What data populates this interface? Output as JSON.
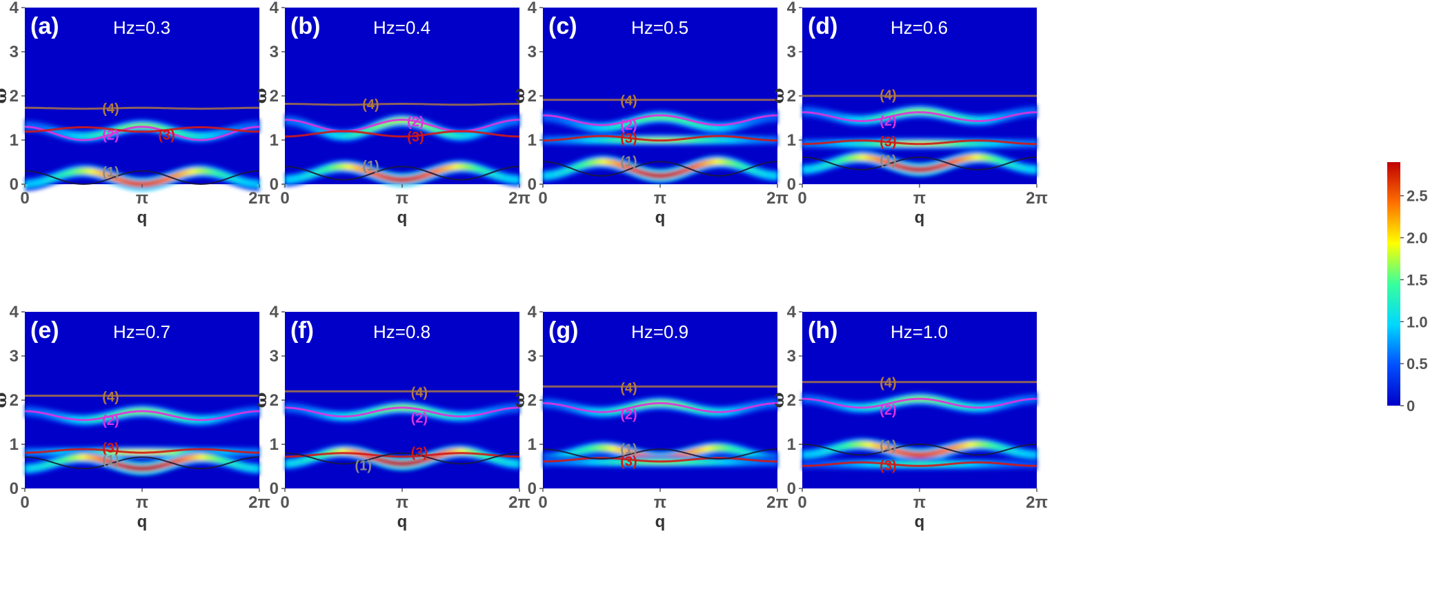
{
  "chart_data": {
    "type": "spectral-heatmap",
    "xlabel": "q",
    "ylabel": "ω",
    "x_ticks": [
      "0",
      "π",
      "2π"
    ],
    "xlim": [
      0,
      6.2832
    ],
    "ylim": [
      0,
      4
    ],
    "y_ticks": [
      "0",
      "1",
      "2",
      "3",
      "4"
    ],
    "colorbar": {
      "ticks": [
        "0",
        "0.5",
        "1.0",
        "1.5",
        "2.0",
        "2.5"
      ],
      "range": [
        0,
        2.9
      ],
      "colors": [
        "#0000c8",
        "#0050ff",
        "#00d8ff",
        "#38ff9c",
        "#ffff00",
        "#ff7000",
        "#c00000"
      ]
    },
    "band_colors": {
      "1": "#8a8a8a",
      "2": "#e030e0",
      "3": "#d01818",
      "4": "#b07a40"
    },
    "panels": [
      {
        "label": "(a)",
        "title": "Hz=0.3",
        "branch_labels": [
          {
            "text": "(4)",
            "band": "4",
            "q": 2.3,
            "w": 1.72
          },
          {
            "text": "(2)",
            "band": "2",
            "q": 2.3,
            "w": 1.12
          },
          {
            "text": "(3)",
            "band": "3",
            "q": 3.8,
            "w": 1.12
          },
          {
            "text": "(1)",
            "band": "1",
            "q": 2.3,
            "w": 0.28
          }
        ],
        "bands": {
          "b4": {
            "c": 1.72,
            "a": 0.01
          },
          "b2": {
            "c": 1.15,
            "a": 0.15
          },
          "b3": {
            "c": 1.24,
            "a": -0.05
          },
          "b1": {
            "c": 0.15,
            "a": 0.15
          }
        },
        "heat": [
          {
            "c": 1.2,
            "a": 0.12,
            "s": 0.07,
            "i": 1.6
          },
          {
            "c": 0.15,
            "a": -0.15,
            "s": 0.07,
            "i": 2.6
          }
        ]
      },
      {
        "label": "(b)",
        "title": "Hz=0.4",
        "branch_labels": [
          {
            "text": "(4)",
            "band": "4",
            "q": 2.3,
            "w": 1.81
          },
          {
            "text": "(2)",
            "band": "2",
            "q": 3.5,
            "w": 1.42
          },
          {
            "text": "(3)",
            "band": "3",
            "q": 3.5,
            "w": 1.08
          },
          {
            "text": "(1)",
            "band": "1",
            "q": 2.3,
            "w": 0.42
          }
        ],
        "bands": {
          "b4": {
            "c": 1.81,
            "a": 0.01
          },
          "b2": {
            "c": 1.33,
            "a": 0.13
          },
          "b3": {
            "c": 1.14,
            "a": -0.06
          },
          "b1": {
            "c": 0.25,
            "a": 0.15
          }
        },
        "heat": [
          {
            "c": 1.27,
            "a": 0.17,
            "s": 0.07,
            "i": 1.7
          },
          {
            "c": 0.25,
            "a": -0.15,
            "s": 0.07,
            "i": 2.7
          }
        ]
      },
      {
        "label": "(c)",
        "title": "Hz=0.5",
        "branch_labels": [
          {
            "text": "(4)",
            "band": "4",
            "q": 2.3,
            "w": 1.9
          },
          {
            "text": "(2)",
            "band": "2",
            "q": 2.3,
            "w": 1.34
          },
          {
            "text": "(3)",
            "band": "3",
            "q": 2.3,
            "w": 1.05
          },
          {
            "text": "(1)",
            "band": "1",
            "q": 2.3,
            "w": 0.52
          }
        ],
        "bands": {
          "b4": {
            "c": 1.91,
            "a": 0.0
          },
          "b2": {
            "c": 1.45,
            "a": 0.11
          },
          "b3": {
            "c": 1.04,
            "a": -0.05
          },
          "b1": {
            "c": 0.35,
            "a": 0.16
          }
        },
        "heat": [
          {
            "c": 1.4,
            "a": 0.12,
            "s": 0.07,
            "i": 1.5
          },
          {
            "c": 1.0,
            "a": 0.0,
            "s": 0.06,
            "i": 1.7
          },
          {
            "c": 0.35,
            "a": -0.16,
            "s": 0.07,
            "i": 2.8
          }
        ]
      },
      {
        "label": "(d)",
        "title": "Hz=0.6",
        "branch_labels": [
          {
            "text": "(4)",
            "band": "4",
            "q": 2.3,
            "w": 2.02
          },
          {
            "text": "(2)",
            "band": "2",
            "q": 2.3,
            "w": 1.44
          },
          {
            "text": "(3)",
            "band": "3",
            "q": 2.3,
            "w": 0.97
          },
          {
            "text": "(1)",
            "band": "1",
            "q": 2.3,
            "w": 0.55
          }
        ],
        "bands": {
          "b4": {
            "c": 2.0,
            "a": 0.0
          },
          "b2": {
            "c": 1.53,
            "a": 0.1
          },
          "b3": {
            "c": 0.95,
            "a": -0.04
          },
          "b1": {
            "c": 0.47,
            "a": 0.14
          }
        },
        "heat": [
          {
            "c": 1.55,
            "a": 0.1,
            "s": 0.07,
            "i": 1.6
          },
          {
            "c": 0.92,
            "a": 0.0,
            "s": 0.06,
            "i": 1.8
          },
          {
            "c": 0.47,
            "a": -0.14,
            "s": 0.07,
            "i": 2.8
          }
        ]
      },
      {
        "label": "(e)",
        "title": "Hz=0.7",
        "branch_labels": [
          {
            "text": "(4)",
            "band": "4",
            "q": 2.3,
            "w": 2.08
          },
          {
            "text": "(2)",
            "band": "2",
            "q": 2.3,
            "w": 1.55
          },
          {
            "text": "(3)",
            "band": "3",
            "q": 2.3,
            "w": 0.92
          },
          {
            "text": "(1)",
            "band": "1",
            "q": 2.3,
            "w": 0.65
          }
        ],
        "bands": {
          "b4": {
            "c": 2.1,
            "a": 0.0
          },
          "b2": {
            "c": 1.65,
            "a": 0.1
          },
          "b3": {
            "c": 0.85,
            "a": -0.04
          },
          "b1": {
            "c": 0.58,
            "a": 0.13
          }
        },
        "heat": [
          {
            "c": 1.65,
            "a": 0.1,
            "s": 0.07,
            "i": 1.6
          },
          {
            "c": 0.82,
            "a": 0.0,
            "s": 0.06,
            "i": 1.9
          },
          {
            "c": 0.58,
            "a": -0.13,
            "s": 0.07,
            "i": 2.9
          }
        ]
      },
      {
        "label": "(f)",
        "title": "Hz=0.8",
        "branch_labels": [
          {
            "text": "(4)",
            "band": "4",
            "q": 3.6,
            "w": 2.18
          },
          {
            "text": "(2)",
            "band": "2",
            "q": 3.6,
            "w": 1.6
          },
          {
            "text": "(3)",
            "band": "3",
            "q": 3.6,
            "w": 0.82
          },
          {
            "text": "(1)",
            "band": "1",
            "q": 2.1,
            "w": 0.52
          }
        ],
        "bands": {
          "b4": {
            "c": 2.2,
            "a": 0.0
          },
          "b2": {
            "c": 1.73,
            "a": 0.1
          },
          "b3": {
            "c": 0.76,
            "a": -0.04
          },
          "b1": {
            "c": 0.68,
            "a": 0.12
          }
        },
        "heat": [
          {
            "c": 1.73,
            "a": 0.1,
            "s": 0.07,
            "i": 1.6
          },
          {
            "c": 0.7,
            "a": -0.14,
            "s": 0.07,
            "i": 2.9
          }
        ]
      },
      {
        "label": "(g)",
        "title": "Hz=0.9",
        "branch_labels": [
          {
            "text": "(4)",
            "band": "4",
            "q": 2.3,
            "w": 2.28
          },
          {
            "text": "(2)",
            "band": "2",
            "q": 2.3,
            "w": 1.68
          },
          {
            "text": "(1)",
            "band": "1",
            "q": 2.3,
            "w": 0.9
          },
          {
            "text": "(3)",
            "band": "3",
            "q": 2.3,
            "w": 0.62
          }
        ],
        "bands": {
          "b4": {
            "c": 2.31,
            "a": 0.0
          },
          "b2": {
            "c": 1.83,
            "a": 0.1
          },
          "b3": {
            "c": 0.65,
            "a": -0.04
          },
          "b1": {
            "c": 0.78,
            "a": 0.11
          }
        },
        "heat": [
          {
            "c": 1.83,
            "a": 0.1,
            "s": 0.07,
            "i": 1.6
          },
          {
            "c": 0.8,
            "a": -0.12,
            "s": 0.07,
            "i": 2.5
          },
          {
            "c": 0.6,
            "a": 0.0,
            "s": 0.06,
            "i": 1.6
          }
        ]
      },
      {
        "label": "(h)",
        "title": "Hz=1.0",
        "branch_labels": [
          {
            "text": "(4)",
            "band": "4",
            "q": 2.3,
            "w": 2.4
          },
          {
            "text": "(2)",
            "band": "2",
            "q": 2.3,
            "w": 1.78
          },
          {
            "text": "(1)",
            "band": "1",
            "q": 2.3,
            "w": 0.98
          },
          {
            "text": "(3)",
            "band": "3",
            "q": 2.3,
            "w": 0.52
          }
        ],
        "bands": {
          "b4": {
            "c": 2.41,
            "a": 0.0
          },
          "b2": {
            "c": 1.93,
            "a": 0.1
          },
          "b3": {
            "c": 0.55,
            "a": -0.04
          },
          "b1": {
            "c": 0.88,
            "a": 0.12
          }
        },
        "heat": [
          {
            "c": 1.93,
            "a": 0.1,
            "s": 0.07,
            "i": 1.6
          },
          {
            "c": 0.88,
            "a": -0.12,
            "s": 0.07,
            "i": 2.6
          },
          {
            "c": 0.55,
            "a": 0.0,
            "s": 0.06,
            "i": 1.3
          }
        ]
      }
    ]
  }
}
